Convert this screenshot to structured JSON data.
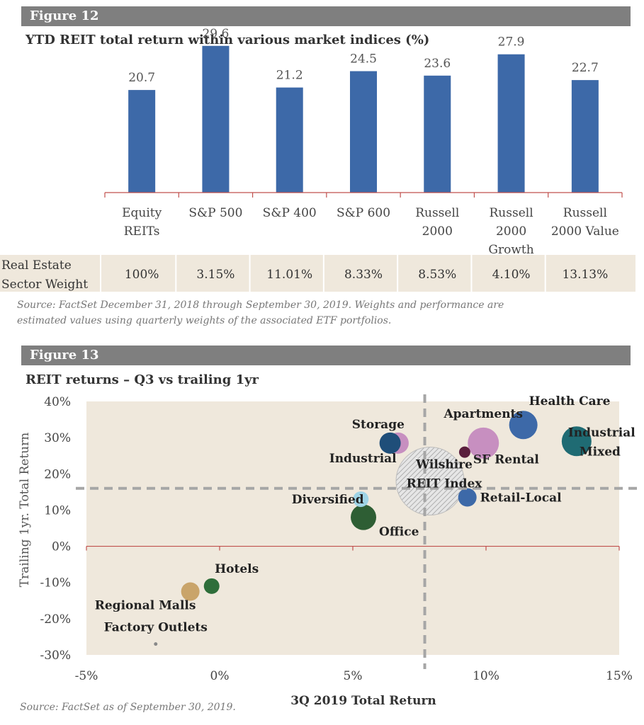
{
  "colors": {
    "header_bar": "#7f7f7f",
    "bar": "#3d69a8",
    "axis_line": "#c0504d",
    "plot_bg": "#efe8dc",
    "table_bg": "#efe8dc",
    "ref_line": "#a6a6a6"
  },
  "figure12": {
    "header": "Figure 12",
    "subtitle": "YTD REIT total return within various market indices (%)",
    "source": "Source: FactSet December 31, 2018 through September 30, 2019. Weights and performance are estimated values using quarterly weights of the associated ETF portfolios."
  },
  "figure13": {
    "header": "Figure 13",
    "subtitle": "REIT returns – Q3 vs trailing 1yr",
    "source": "Source: FactSet as of September 30, 2019."
  },
  "weights_table": {
    "row_label": [
      "Real Estate",
      "Sector Weight"
    ],
    "values": [
      "100%",
      "3.15%",
      "11.01%",
      "8.33%",
      "8.53%",
      "4.10%",
      "13.13%"
    ]
  },
  "chart_data": [
    {
      "type": "bar",
      "title": "YTD REIT total return within various market indices (%)",
      "categories": [
        [
          "Equity",
          "REITs"
        ],
        [
          "S&P 500"
        ],
        [
          "S&P 400"
        ],
        [
          "S&P 600"
        ],
        [
          "Russell",
          "2000"
        ],
        [
          "Russell",
          "2000",
          "Growth"
        ],
        [
          "Russell",
          "2000 Value"
        ]
      ],
      "values": [
        20.7,
        29.6,
        21.2,
        24.5,
        23.6,
        27.9,
        22.7
      ],
      "value_labels": [
        "20.7",
        "29.6",
        "21.2",
        "24.5",
        "23.6",
        "27.9",
        "22.7"
      ],
      "ylim": [
        0,
        30
      ],
      "grid": false,
      "legend": "none"
    },
    {
      "type": "scatter",
      "title": "REIT returns – Q3 vs trailing 1yr",
      "xlabel": "3Q 2019 Total Return",
      "ylabel": "Trailing 1yr.  Total Return",
      "xlim": [
        -5,
        15
      ],
      "ylim": [
        -30,
        40
      ],
      "xticks": [
        "-5%",
        "0%",
        "5%",
        "10%",
        "15%"
      ],
      "yticks": [
        "40%",
        "30%",
        "20%",
        "10%",
        "0%",
        "-10%",
        "-20%",
        "-30%"
      ],
      "xtick_values": [
        -5,
        0,
        5,
        10,
        15
      ],
      "ytick_values": [
        40,
        30,
        20,
        10,
        0,
        -10,
        -20,
        -30
      ],
      "reference_lines": {
        "x": 7.7,
        "y": 16
      },
      "grid": false,
      "points": [
        {
          "label": "Health Care",
          "x": 11.4,
          "y": 33.5,
          "size": 20,
          "color": "#3d69a8",
          "label_pos": "above-right",
          "label_lines": [
            "Health Care"
          ]
        },
        {
          "label": "Industrial Mixed",
          "x": 13.4,
          "y": 29,
          "size": 21,
          "color": "#1f6b73",
          "label_pos": "right",
          "label_lines": [
            "Industrial",
            "Mixed"
          ]
        },
        {
          "label": "Apartments",
          "x": 9.9,
          "y": 28.5,
          "size": 22,
          "color": "#c78fc0",
          "label_pos": "above",
          "label_lines": [
            "Apartments"
          ]
        },
        {
          "label": "SF Rental",
          "x": 9.2,
          "y": 26,
          "size": 8,
          "color": "#5a1e3c",
          "label_pos": "below-right",
          "label_lines": [
            "SF Rental"
          ]
        },
        {
          "label": "Storage",
          "x": 6.7,
          "y": 28.5,
          "size": 15,
          "color": "#c78fc0",
          "label_pos": "above-left",
          "label_lines": [
            "Storage"
          ]
        },
        {
          "label": "Industrial",
          "x": 6.4,
          "y": 28.5,
          "size": 15,
          "color": "#1f4e79",
          "label_pos": "below-left",
          "label_lines": [
            "Industrial"
          ]
        },
        {
          "label": "Wilshire REIT Index",
          "x": 7.9,
          "y": 18,
          "size": 48,
          "color": "#cfcfcf",
          "hatched": true,
          "label_pos": "center",
          "label_lines": [
            "Wilshire",
            "REIT Index"
          ]
        },
        {
          "label": "Retail-Local",
          "x": 9.3,
          "y": 13.5,
          "size": 13,
          "color": "#3d69a8",
          "label_pos": "right",
          "label_lines": [
            "Retail-Local"
          ]
        },
        {
          "label": "Diversified",
          "x": 5.3,
          "y": 13,
          "size": 11,
          "color": "#9fd4e6",
          "label_pos": "left",
          "label_lines": [
            "Diversified"
          ]
        },
        {
          "label": "Office",
          "x": 5.4,
          "y": 8,
          "size": 18,
          "color": "#2e5e34",
          "label_pos": "below-right",
          "label_lines": [
            "Office"
          ]
        },
        {
          "label": "Hotels",
          "x": -0.3,
          "y": -11,
          "size": 11,
          "color": "#2e6e3a",
          "label_pos": "above-right",
          "label_lines": [
            "Hotels"
          ]
        },
        {
          "label": "Regional Malls",
          "x": -1.1,
          "y": -12.5,
          "size": 13,
          "color": "#c9a46a",
          "label_pos": "below-left",
          "label_lines": [
            "Regional Malls"
          ]
        },
        {
          "label": "Factory Outlets",
          "x": -2.4,
          "y": -27,
          "size": 2.5,
          "color": "#888888",
          "label_pos": "above",
          "label_lines": [
            "Factory Outlets"
          ]
        }
      ]
    }
  ]
}
